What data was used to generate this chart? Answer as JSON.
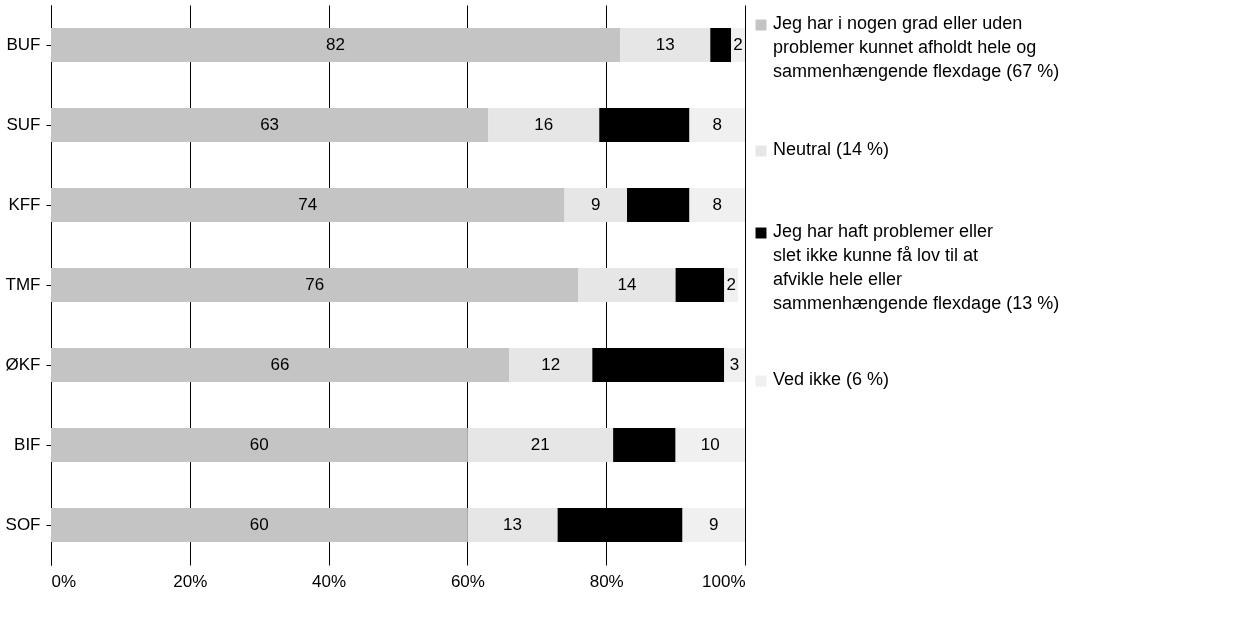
{
  "chart_data": {
    "type": "bar",
    "orientation": "horizontal",
    "stacked": true,
    "categories": [
      "BUF",
      "SUF",
      "KFF",
      "TMF",
      "ØKF",
      "BIF",
      "SOF"
    ],
    "series": [
      {
        "name": "Jeg har i nogen grad eller uden problemer kunnet afholdt hele og sammenhængende flexdage (67 %)",
        "color": "#c4c4c4",
        "values": [
          82,
          63,
          74,
          76,
          66,
          60,
          60
        ],
        "value_labels": [
          "82",
          "63",
          "74",
          "76",
          "66",
          "60",
          "60"
        ]
      },
      {
        "name": "Neutral (14 %)",
        "color": "#e6e6e6",
        "values": [
          13,
          16,
          9,
          14,
          12,
          21,
          13
        ],
        "value_labels": [
          "13",
          "16",
          "9",
          "14",
          "12",
          "21",
          "13"
        ]
      },
      {
        "name": "Jeg har haft problemer eller slet ikke kunne få lov til at afvikle hele eller sammenhængende flexdage (13 %)",
        "color": "#000000",
        "values": [
          3,
          13,
          9,
          7,
          19,
          9,
          18
        ]
      },
      {
        "name": "Ved ikke (6 %)",
        "color": "#f0f0f0",
        "values": [
          2,
          8,
          8,
          2,
          3,
          10,
          9
        ],
        "value_labels": [
          "2",
          "8",
          "8",
          "2",
          "3",
          "10",
          "9"
        ]
      }
    ],
    "xlim": [
      0,
      100
    ],
    "xticks": [
      {
        "value": 0,
        "label": "0%"
      },
      {
        "value": 20,
        "label": "20%"
      },
      {
        "value": 40,
        "label": "40%"
      },
      {
        "value": 60,
        "label": "60%"
      },
      {
        "value": 80,
        "label": "80%"
      },
      {
        "value": 100,
        "label": "100%"
      }
    ],
    "grid": "x",
    "legend": "right"
  }
}
